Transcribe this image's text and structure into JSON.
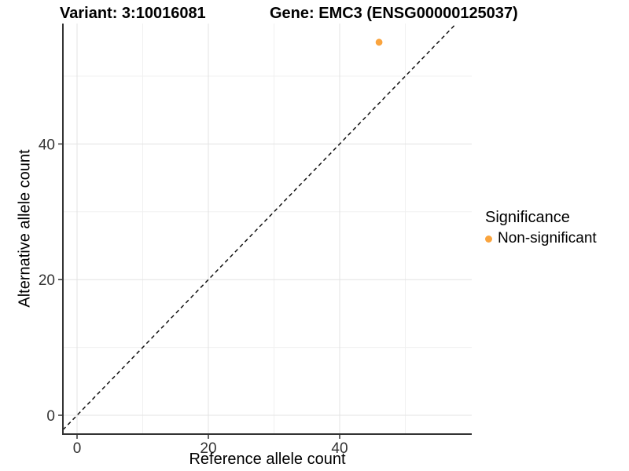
{
  "chart_data": {
    "type": "scatter",
    "titles": {
      "variant": "Variant: 3:10016081",
      "gene": "Gene: EMC3 (ENSG00000125037)"
    },
    "xlabel": "Reference allele count",
    "ylabel": "Alternative allele count",
    "xlim": [
      -2,
      60
    ],
    "ylim": [
      -3,
      58
    ],
    "x_ticks": {
      "values": [
        0,
        20,
        40
      ],
      "labels": [
        "0",
        "20",
        "40"
      ]
    },
    "y_ticks": {
      "values": [
        0,
        20,
        40
      ],
      "labels": [
        "0",
        "20",
        "40"
      ]
    },
    "x_minor_gridlines": [
      10,
      30,
      50
    ],
    "y_minor_gridlines": [
      10,
      30,
      50
    ],
    "grid": true,
    "points": [
      {
        "x": 46,
        "y": 55,
        "series": "Non-significant"
      }
    ],
    "series": [
      {
        "name": "Non-significant",
        "color": "#FAA43E",
        "point_radius": 4.4
      }
    ],
    "reference_line": {
      "type": "identity",
      "slope": 1,
      "intercept": 0,
      "style": "dashed",
      "color": "#111111"
    },
    "legend": {
      "title": "Significance",
      "position": "right",
      "entries": [
        {
          "label": "Non-significant",
          "color": "#FAA43E"
        }
      ]
    }
  },
  "colors": {
    "background": "#FFFFFF",
    "axis_line": "#333333",
    "major_grid": "#E3E3E3",
    "minor_grid": "#F0F0F0",
    "tick_text": "#333333",
    "title_text": "#000000"
  }
}
